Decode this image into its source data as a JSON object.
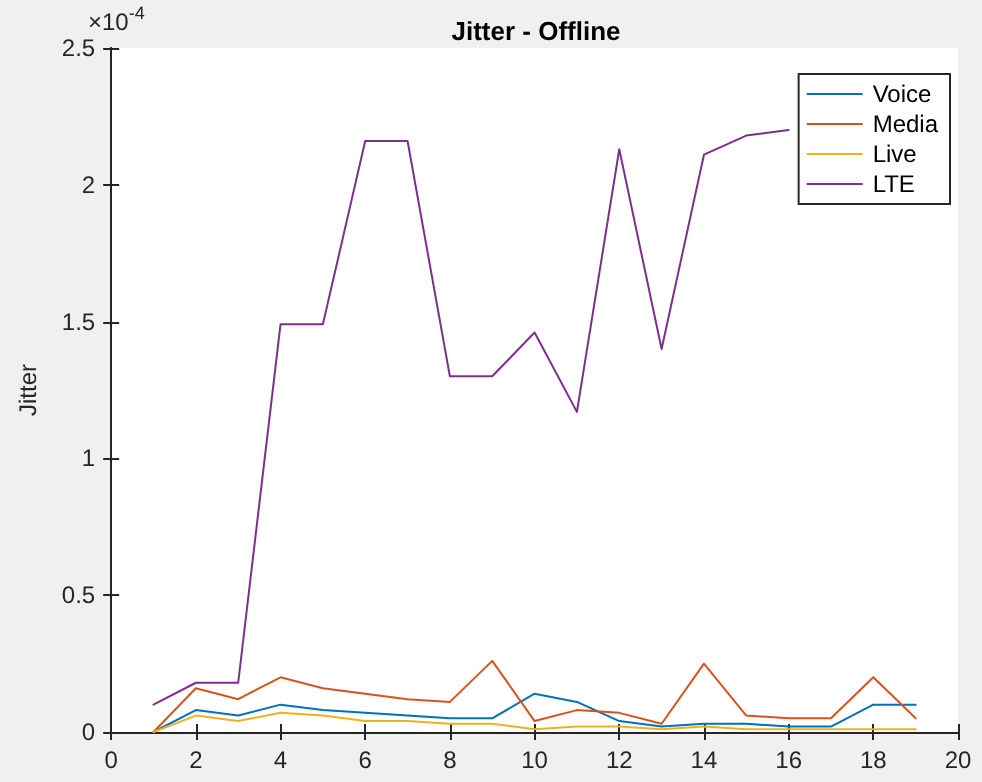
{
  "chart_data": {
    "type": "line",
    "title": "Jitter - Offline",
    "ylabel": "Jitter",
    "annotations": [
      "×10$^{-4}$"
    ],
    "x": [
      1,
      2,
      3,
      4,
      5,
      6,
      7,
      8,
      9,
      10,
      11,
      12,
      13,
      14,
      15,
      16,
      17,
      18,
      19
    ],
    "series": [
      {
        "name": "Voice",
        "color": "#0072bd",
        "values": [
          0,
          0.08,
          0.06,
          0.1,
          0.08,
          0.07,
          0.06,
          0.05,
          0.05,
          0.14,
          0.11,
          0.04,
          0.02,
          0.03,
          0.03,
          0.02,
          0.02,
          0.1,
          0.1
        ]
      },
      {
        "name": "Media",
        "color": "#d95319",
        "values": [
          0,
          0.16,
          0.12,
          0.2,
          0.16,
          0.14,
          0.12,
          0.11,
          0.26,
          0.04,
          0.08,
          0.07,
          0.03,
          0.25,
          0.06,
          0.05,
          0.05,
          0.2,
          0.05
        ]
      },
      {
        "name": "Live",
        "color": "#edb120",
        "values": [
          0,
          0.06,
          0.04,
          0.07,
          0.06,
          0.04,
          0.04,
          0.03,
          0.03,
          0.01,
          0.02,
          0.02,
          0.01,
          0.02,
          0.01,
          0.01,
          0.01,
          0.01,
          0.01
        ]
      },
      {
        "name": "LTE",
        "color": "#7e2f8e",
        "values": [
          0.1,
          0.18,
          0.18,
          1.49,
          1.49,
          2.16,
          2.16,
          1.3,
          1.3,
          1.46,
          1.17,
          2.13,
          1.4,
          2.11,
          2.18,
          2.2,
          null,
          null,
          null
        ]
      }
    ],
    "xlim": [
      0,
      20
    ],
    "xticks": [
      0,
      2,
      4,
      6,
      8,
      10,
      12,
      14,
      16,
      18,
      20
    ],
    "ylim": [
      0,
      2.5
    ],
    "yticks": [
      0,
      0.5,
      1,
      1.5,
      2,
      2.5
    ],
    "grid": false,
    "legend": "top right",
    "marker": "none",
    "line_style": "solid"
  }
}
